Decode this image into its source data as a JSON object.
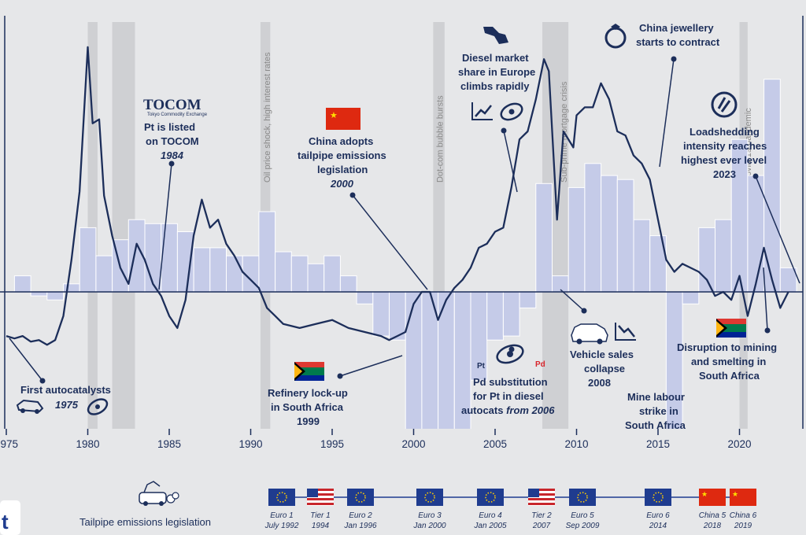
{
  "chart_data": {
    "type": "line",
    "x_range": [
      1975,
      2023
    ],
    "x_ticks": [
      "1975",
      "1980",
      "1985",
      "1990",
      "1995",
      "2000",
      "2005",
      "2010",
      "2015",
      "2020"
    ],
    "y_visible": false,
    "recession_bands": [
      {
        "start": 1980.0,
        "end": 1980.6
      },
      {
        "start": 1981.5,
        "end": 1982.9
      },
      {
        "start": 1990.6,
        "end": 1991.2
      },
      {
        "start": 2001.2,
        "end": 2001.9
      },
      {
        "start": 2007.9,
        "end": 2009.5
      },
      {
        "start": 2020.0,
        "end": 2020.5
      }
    ],
    "period_labels": [
      {
        "year": 1991.0,
        "text": "Oil price shock, high interest rates"
      },
      {
        "year": 2001.6,
        "text": "Dot-com bubble bursts"
      },
      {
        "year": 2009.2,
        "text": "Sub-prime mortgage crisis"
      },
      {
        "year": 2020.5,
        "text": "Covid-19 pandemic"
      }
    ],
    "series": [
      {
        "points": [
          [
            1975.0,
            -0.55
          ],
          [
            1975.5,
            -0.58
          ],
          [
            1976.0,
            -0.55
          ],
          [
            1976.5,
            -0.62
          ],
          [
            1977.0,
            -0.6
          ],
          [
            1977.5,
            -0.66
          ],
          [
            1978.0,
            -0.6
          ],
          [
            1978.5,
            -0.3
          ],
          [
            1979.0,
            0.4
          ],
          [
            1979.5,
            1.25
          ],
          [
            1980.0,
            3.05
          ],
          [
            1980.3,
            2.1
          ],
          [
            1980.7,
            2.15
          ],
          [
            1981.0,
            1.2
          ],
          [
            1981.5,
            0.7
          ],
          [
            1982.0,
            0.3
          ],
          [
            1982.5,
            0.1
          ],
          [
            1983.0,
            0.6
          ],
          [
            1983.5,
            0.4
          ],
          [
            1984.0,
            0.1
          ],
          [
            1984.5,
            -0.05
          ],
          [
            1985.0,
            -0.3
          ],
          [
            1985.5,
            -0.45
          ],
          [
            1986.0,
            -0.1
          ],
          [
            1986.5,
            0.7
          ],
          [
            1987.0,
            1.15
          ],
          [
            1987.5,
            0.8
          ],
          [
            1988.0,
            0.9
          ],
          [
            1988.5,
            0.6
          ],
          [
            1989.0,
            0.45
          ],
          [
            1989.5,
            0.25
          ],
          [
            1990.0,
            0.15
          ],
          [
            1990.5,
            0.05
          ],
          [
            1991.0,
            -0.2
          ],
          [
            1991.5,
            -0.3
          ],
          [
            1992.0,
            -0.4
          ],
          [
            1993.0,
            -0.45
          ],
          [
            1994.0,
            -0.4
          ],
          [
            1995.0,
            -0.35
          ],
          [
            1996.0,
            -0.45
          ],
          [
            1997.0,
            -0.5
          ],
          [
            1998.0,
            -0.55
          ],
          [
            1998.5,
            -0.6
          ],
          [
            1999.0,
            -0.55
          ],
          [
            1999.5,
            -0.5
          ],
          [
            2000.0,
            -0.15
          ],
          [
            2000.5,
            0.0
          ],
          [
            2001.0,
            0.0
          ],
          [
            2001.5,
            -0.35
          ],
          [
            2002.0,
            -0.1
          ],
          [
            2002.5,
            0.05
          ],
          [
            2003.0,
            0.15
          ],
          [
            2003.5,
            0.3
          ],
          [
            2004.0,
            0.55
          ],
          [
            2004.5,
            0.6
          ],
          [
            2005.0,
            0.75
          ],
          [
            2005.5,
            0.8
          ],
          [
            2006.0,
            1.3
          ],
          [
            2006.5,
            1.9
          ],
          [
            2007.0,
            2.0
          ],
          [
            2007.5,
            2.4
          ],
          [
            2008.0,
            2.9
          ],
          [
            2008.3,
            2.75
          ],
          [
            2008.8,
            0.9
          ],
          [
            2009.2,
            2.0
          ],
          [
            2009.8,
            1.8
          ],
          [
            2010.0,
            2.2
          ],
          [
            2010.5,
            2.3
          ],
          [
            2011.0,
            2.3
          ],
          [
            2011.5,
            2.6
          ],
          [
            2012.0,
            2.4
          ],
          [
            2012.5,
            2.0
          ],
          [
            2013.0,
            1.95
          ],
          [
            2013.5,
            1.7
          ],
          [
            2014.0,
            1.6
          ],
          [
            2014.5,
            1.4
          ],
          [
            2015.0,
            0.9
          ],
          [
            2015.5,
            0.4
          ],
          [
            2016.0,
            0.25
          ],
          [
            2016.5,
            0.35
          ],
          [
            2017.0,
            0.3
          ],
          [
            2017.5,
            0.25
          ],
          [
            2018.0,
            0.15
          ],
          [
            2018.5,
            -0.05
          ],
          [
            2019.0,
            0.0
          ],
          [
            2019.5,
            -0.1
          ],
          [
            2020.0,
            0.2
          ],
          [
            2020.5,
            -0.3
          ],
          [
            2021.0,
            0.1
          ],
          [
            2021.5,
            0.55
          ],
          [
            2022.0,
            0.15
          ],
          [
            2022.5,
            -0.2
          ],
          [
            2023.0,
            0.0
          ]
        ]
      },
      {
        "type": "bar",
        "bars": [
          [
            1976,
            0.2
          ],
          [
            1977,
            -0.05
          ],
          [
            1978,
            -0.1
          ],
          [
            1979,
            0.1
          ],
          [
            1980,
            0.8
          ],
          [
            1981,
            0.45
          ],
          [
            1982,
            0.65
          ],
          [
            1983,
            0.9
          ],
          [
            1984,
            0.85
          ],
          [
            1985,
            0.85
          ],
          [
            1986,
            0.75
          ],
          [
            1987,
            0.55
          ],
          [
            1988,
            0.55
          ],
          [
            1989,
            0.45
          ],
          [
            1990,
            0.45
          ],
          [
            1991,
            1.0
          ],
          [
            1992,
            0.5
          ],
          [
            1993,
            0.45
          ],
          [
            1994,
            0.35
          ],
          [
            1995,
            0.45
          ],
          [
            1996,
            0.2
          ],
          [
            1997,
            -0.15
          ],
          [
            1998,
            -0.55
          ],
          [
            1999,
            -0.6
          ],
          [
            2000,
            -2.35
          ],
          [
            2001,
            -2.25
          ],
          [
            2002,
            -1.95
          ],
          [
            2003,
            -1.85
          ],
          [
            2004,
            -1.1
          ],
          [
            2005,
            -0.6
          ],
          [
            2006,
            -0.55
          ],
          [
            2007,
            -0.2
          ],
          [
            2008,
            1.35
          ],
          [
            2009,
            0.2
          ],
          [
            2010,
            1.3
          ],
          [
            2011,
            1.6
          ],
          [
            2012,
            1.45
          ],
          [
            2013,
            1.4
          ],
          [
            2014,
            0.9
          ],
          [
            2015,
            0.7
          ],
          [
            2016,
            -2.35
          ],
          [
            2017,
            -0.15
          ],
          [
            2018,
            0.8
          ],
          [
            2019,
            0.9
          ],
          [
            2020,
            1.9
          ],
          [
            2021,
            1.45
          ],
          [
            2022,
            2.65
          ],
          [
            2023,
            0.3
          ]
        ]
      }
    ]
  },
  "annotations": {
    "first_autocatalysts": {
      "line1": "First autocatalysts",
      "year": "1975"
    },
    "tocom_logo": {
      "text": "TOCOM",
      "sub": "Tokyo Commodity Exchange"
    },
    "pt_tocom": {
      "line1": "Pt is listed",
      "line2": "on TOCOM",
      "year": "1984"
    },
    "china_tailpipe": {
      "line1": "China adopts",
      "line2": "tailpipe emissions",
      "line3": "legislation",
      "year": "2000"
    },
    "refinery": {
      "line1": "Refinery lock-up",
      "line2": "in South Africa",
      "line3": "1999"
    },
    "diesel": {
      "line1": "Diesel market",
      "line2": "share in Europe",
      "line3": "climbs rapidly"
    },
    "pd_sub": {
      "line1": "Pd substitution",
      "line2": "for Pt in diesel",
      "line3a": "autocats ",
      "line3b": "from 2006",
      "pt": "Pt",
      "pd": "Pd"
    },
    "vehicle_sales": {
      "line1": "Vehicle sales",
      "line2": "collapse",
      "line3": "2008"
    },
    "mine_strike": {
      "line1": "Mine labour",
      "line2": "strike in",
      "line3": "South Africa"
    },
    "jewellery": {
      "line1": "China jewellery",
      "line2": "starts to contract"
    },
    "loadshedding": {
      "line1": "Loadshedding",
      "line2": "intensity reaches",
      "line3": "highest ever level",
      "line4": "2023"
    },
    "disruption": {
      "line1": "Disruption to mining",
      "line2": "and smelting in",
      "line3": "South Africa"
    }
  },
  "legislation": {
    "title": "Tailpipe emissions legislation",
    "corner_letter": "t",
    "items": [
      {
        "flag": "eu",
        "name": "Euro 1",
        "date": "July 1992"
      },
      {
        "flag": "us",
        "name": "Tier 1",
        "date": "1994"
      },
      {
        "flag": "eu",
        "name": "Euro 2",
        "date": "Jan 1996"
      },
      {
        "flag": "eu",
        "name": "Euro 3",
        "date": "Jan 2000"
      },
      {
        "flag": "eu",
        "name": "Euro 4",
        "date": "Jan 2005"
      },
      {
        "flag": "us",
        "name": "Tier 2",
        "date": "2007"
      },
      {
        "flag": "eu",
        "name": "Euro 5",
        "date": "Sep 2009"
      },
      {
        "flag": "eu",
        "name": "Euro 6",
        "date": "2014"
      },
      {
        "flag": "cn",
        "name": "China 5",
        "date": "2018"
      },
      {
        "flag": "cn",
        "name": "China 6",
        "date": "2019"
      }
    ]
  },
  "colors": {
    "line": "#1c2e5a",
    "bar": "#c5cbe8",
    "bar_stroke": "#ffffff",
    "band": "#cfd0d3",
    "axis": "#1c2e5a",
    "eu": "#1f3c8f",
    "us_red": "#c8262c",
    "cn_red": "#de2910",
    "sa_green": "#007a4d",
    "pd_red": "#d8262c"
  }
}
